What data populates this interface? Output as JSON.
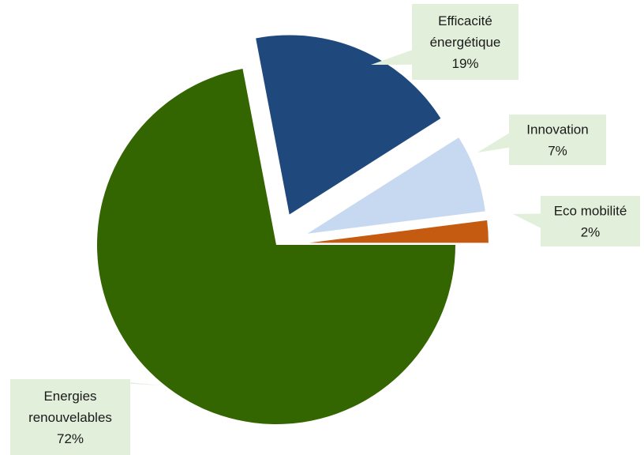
{
  "chart_data": {
    "type": "pie",
    "title": "",
    "slices": [
      {
        "name": "Energies renouvelables",
        "lines": [
          "Energies",
          "renouvelables"
        ],
        "value": 72,
        "value_label": "72%",
        "color": "#336600",
        "exploded": false
      },
      {
        "name": "Efficacité énergétique",
        "lines": [
          "Efficacité",
          "énergétique"
        ],
        "value": 19,
        "value_label": "19%",
        "color": "#1F497D",
        "exploded": true
      },
      {
        "name": "Innovation",
        "lines": [
          "Innovation"
        ],
        "value": 7,
        "value_label": "7%",
        "color": "#C6D9F1",
        "exploded": true
      },
      {
        "name": "Eco mobilité",
        "lines": [
          "Eco mobilité"
        ],
        "value": 2,
        "value_label": "2%",
        "color": "#C55A11",
        "exploded": true
      }
    ],
    "label_box_color": "#E2EFDA",
    "legend": "none"
  }
}
